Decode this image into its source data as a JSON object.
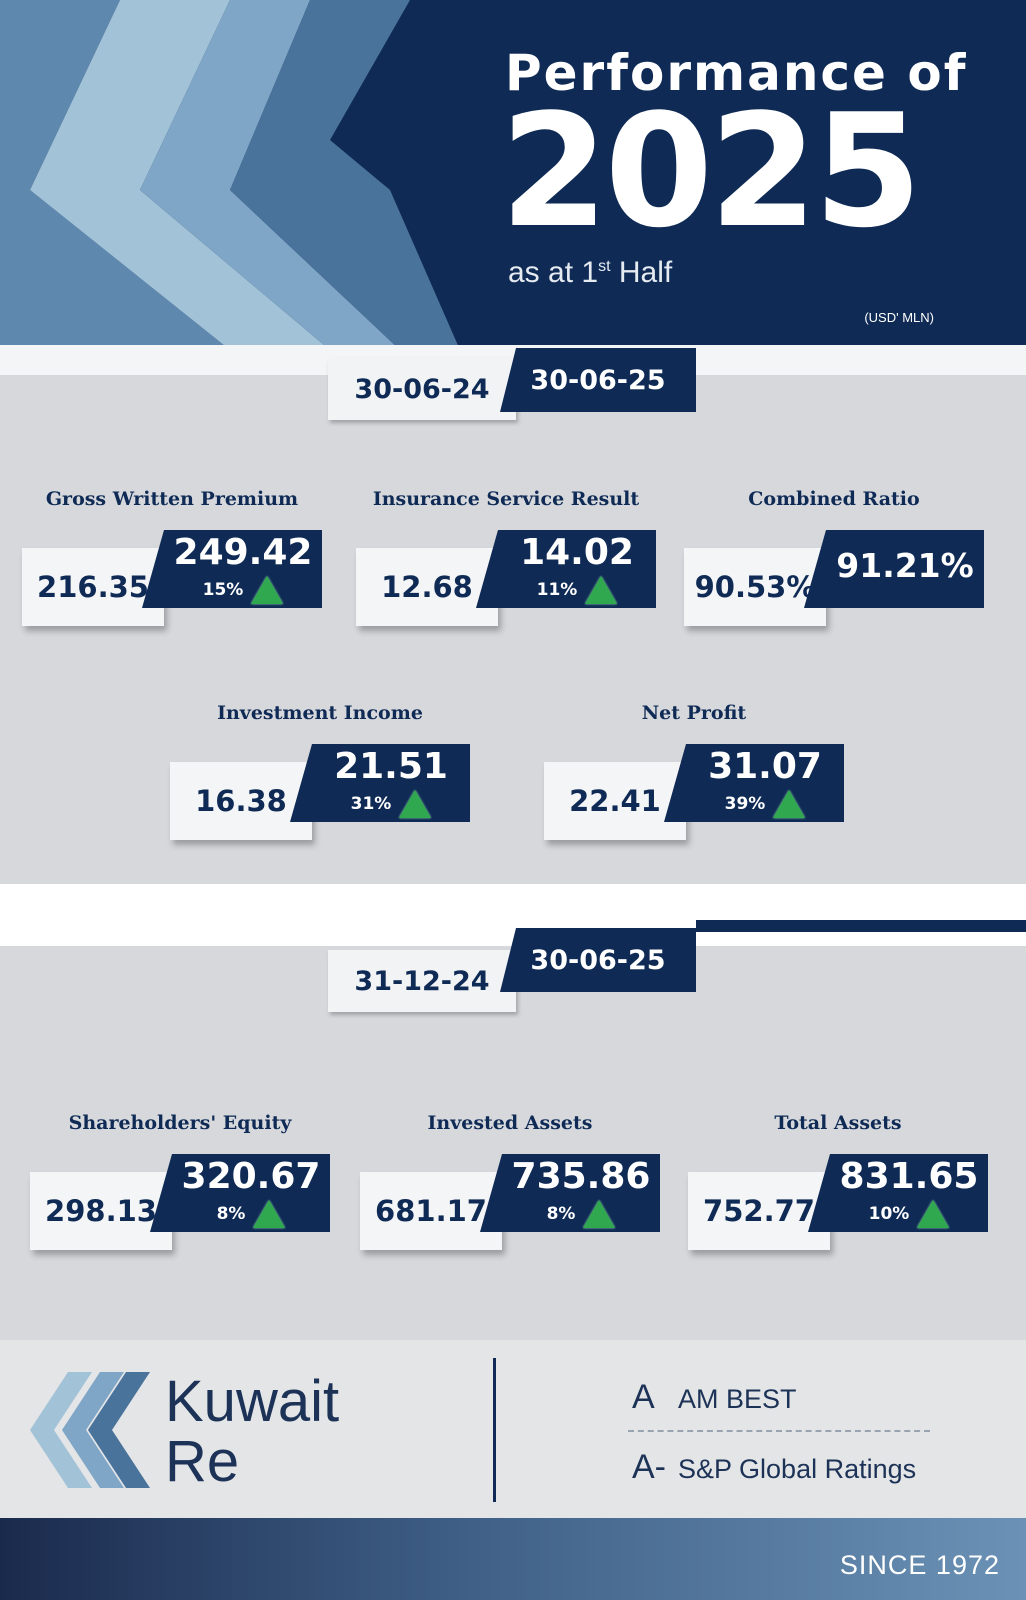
{
  "header": {
    "title_line1": "Performance of",
    "title_year": "2025",
    "subtitle_pre": "as at 1",
    "subtitle_sup": "st",
    "subtitle_post": " Half",
    "unit": "(USD' MLN)"
  },
  "section1": {
    "date_prev": "30-06-24",
    "date_curr": "30-06-25",
    "metrics": [
      {
        "label": "Gross Written Premium",
        "prev": "216.35",
        "curr": "249.42",
        "change": "15%"
      },
      {
        "label": "Insurance Service Result",
        "prev": "12.68",
        "curr": "14.02",
        "change": "11%"
      },
      {
        "label": "Combined Ratio",
        "prev": "90.53%",
        "curr": "91.21%"
      },
      {
        "label": "Investment Income",
        "prev": "16.38",
        "curr": "21.51",
        "change": "31%"
      },
      {
        "label": "Net Profit",
        "prev": "22.41",
        "curr": "31.07",
        "change": "39%"
      }
    ]
  },
  "section2": {
    "date_prev": "31-12-24",
    "date_curr": "30-06-25",
    "metrics": [
      {
        "label": "Shareholders' Equity",
        "prev": "298.13",
        "curr": "320.67",
        "change": "8%"
      },
      {
        "label": "Invested Assets",
        "prev": "681.17",
        "curr": "735.86",
        "change": "8%"
      },
      {
        "label": "Total Assets",
        "prev": "752.77",
        "curr": "831.65",
        "change": "10%"
      }
    ]
  },
  "footer": {
    "brand_line1": "Kuwait",
    "brand_line2": "Re",
    "ratings": [
      {
        "grade": "A",
        "agency": "AM BEST"
      },
      {
        "grade": "A-",
        "agency": "S&P Global Ratings"
      }
    ],
    "since": "SINCE 1972"
  },
  "colors": {
    "navy": "#0e2a55",
    "background": "#d6d8dc",
    "up_arrow": "#2fa84f"
  },
  "icons": [
    "kuwait-re-chevron-logo",
    "up-arrow-icon"
  ]
}
